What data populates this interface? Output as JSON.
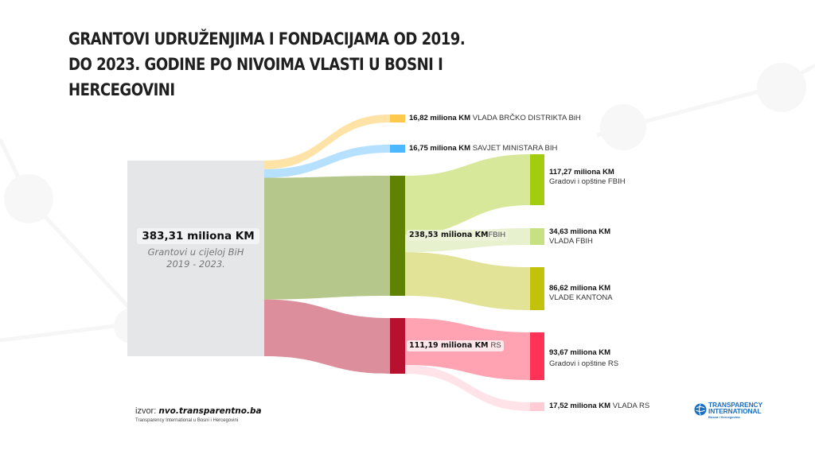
{
  "title": {
    "lines": [
      "GRANTOVI UDRUŽENJIMA I FONDACIJAMA OD 2019.",
      "DO 2023. GODINE PO NIVOIMA VLASTI U BOSNI I",
      "HERCEGOVINI"
    ]
  },
  "chart_data": {
    "type": "sankey",
    "unit": "miliona KM",
    "source": {
      "id": "total",
      "value": 383.31,
      "value_label": "383,31 miliona KM",
      "label_lines": [
        "Grantovi u cijeloj BiH",
        "2019 - 2023."
      ],
      "color": "#e5e6e8"
    },
    "nodes": [
      {
        "id": "brcko",
        "value": 16.82,
        "value_label": "16,82 miliona KM",
        "name": "VLADA BRČKO DISTRIKTA BiH",
        "color": "#ffc94d",
        "link_color": "#ffe3a6"
      },
      {
        "id": "savjet",
        "value": 16.75,
        "value_label": "16,75 miliona KM",
        "name": "SAVJET MINISTARA BIH",
        "color": "#4db8ff",
        "link_color": "#b5e0ff"
      },
      {
        "id": "fbih",
        "value": 238.53,
        "value_label": "238,53 miliona KM",
        "name": "FBIH",
        "color": "#5f8200",
        "link_color": "#b5c78a"
      },
      {
        "id": "rs",
        "value": 111.19,
        "value_label": "111,19 miliona KM",
        "name": "RS",
        "color": "#b8102f",
        "link_color": "#dd8e9d"
      },
      {
        "id": "fbih_gradovi",
        "parent": "fbih",
        "value": 117.27,
        "value_label": "117,27 miliona KM",
        "name": "Gradovi i opštine FBIH",
        "color": "#a3cc0f",
        "link_color": "#d8e89a"
      },
      {
        "id": "fbih_vlada",
        "parent": "fbih",
        "value": 34.63,
        "value_label": "34,63 miliona KM",
        "name": "VLADA FBIH",
        "color": "#c7e082",
        "link_color": "#e7f1cd"
      },
      {
        "id": "kantoni",
        "parent": "fbih",
        "value": 86.62,
        "value_label": "86,62 miliona KM",
        "name": "VLADE KANTONA",
        "color": "#c2c20c",
        "link_color": "#e2e396"
      },
      {
        "id": "rs_gradovi",
        "parent": "rs",
        "value": 93.67,
        "value_label": "93,67 miliona KM",
        "name": "Gradovi i opštine RS",
        "color": "#ff3355",
        "link_color": "#ffa3b3"
      },
      {
        "id": "rs_vlada",
        "parent": "rs",
        "value": 17.52,
        "value_label": "17,52 miliona KM",
        "name": "VLADA RS",
        "color": "#ffccd6",
        "link_color": "#ffe3e8"
      }
    ]
  },
  "footer": {
    "source_prefix": "izvor:",
    "source_site": "nvo.transparentno.ba",
    "organization": "Transparency International u Bosni i Hercegovini",
    "logo_line1": "TRANSPARENCY",
    "logo_line2": "INTERNATIONAL",
    "logo_line3": "Bosna i Hercegovina"
  }
}
